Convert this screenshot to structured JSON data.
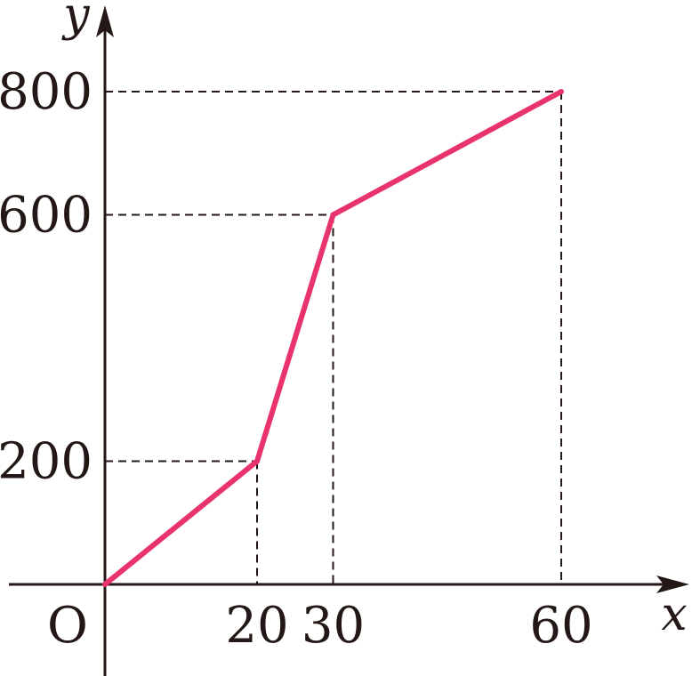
{
  "chart_data": {
    "type": "line",
    "title": "",
    "xlabel": "x",
    "ylabel": "y",
    "origin_label": "O",
    "x": [
      0,
      20,
      30,
      60
    ],
    "y": [
      0,
      200,
      600,
      800
    ],
    "x_ticks": [
      20,
      30,
      60
    ],
    "y_ticks": [
      200,
      600,
      800
    ],
    "xlim": [
      0,
      76
    ],
    "ylim": [
      0,
      900
    ],
    "grid": false,
    "line_color": "#e8336d",
    "axis_color": "#231815"
  }
}
